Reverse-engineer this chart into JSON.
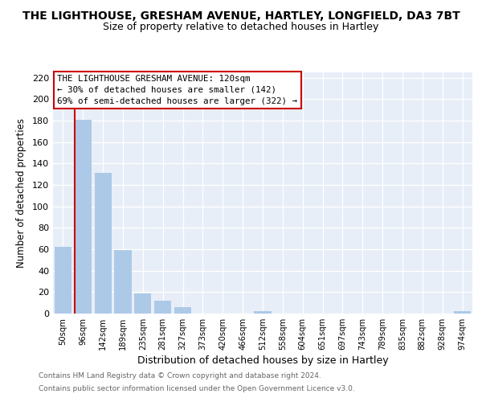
{
  "title": "THE LIGHTHOUSE, GRESHAM AVENUE, HARTLEY, LONGFIELD, DA3 7BT",
  "subtitle": "Size of property relative to detached houses in Hartley",
  "xlabel": "Distribution of detached houses by size in Hartley",
  "ylabel": "Number of detached properties",
  "bar_labels": [
    "50sqm",
    "96sqm",
    "142sqm",
    "189sqm",
    "235sqm",
    "281sqm",
    "327sqm",
    "373sqm",
    "420sqm",
    "466sqm",
    "512sqm",
    "558sqm",
    "604sqm",
    "651sqm",
    "697sqm",
    "743sqm",
    "789sqm",
    "835sqm",
    "882sqm",
    "928sqm",
    "974sqm"
  ],
  "bar_values": [
    62,
    181,
    131,
    59,
    19,
    12,
    6,
    0,
    0,
    0,
    2,
    0,
    0,
    0,
    0,
    0,
    0,
    0,
    0,
    0,
    2
  ],
  "bar_color": "#adc9e8",
  "highlight_line_color": "#cc0000",
  "highlight_index": 1,
  "ylim": [
    0,
    225
  ],
  "yticks": [
    0,
    20,
    40,
    60,
    80,
    100,
    120,
    140,
    160,
    180,
    200,
    220
  ],
  "annotation_line1": "THE LIGHTHOUSE GRESHAM AVENUE: 120sqm",
  "annotation_line2": "← 30% of detached houses are smaller (142)",
  "annotation_line3": "69% of semi-detached houses are larger (322) →",
  "footer_line1": "Contains HM Land Registry data © Crown copyright and database right 2024.",
  "footer_line2": "Contains public sector information licensed under the Open Government Licence v3.0.",
  "background_color": "#ffffff",
  "plot_bg_color": "#e8eef8",
  "grid_color": "#ffffff",
  "annotation_border_color": "#cc0000",
  "title_fontsize": 10,
  "subtitle_fontsize": 9
}
